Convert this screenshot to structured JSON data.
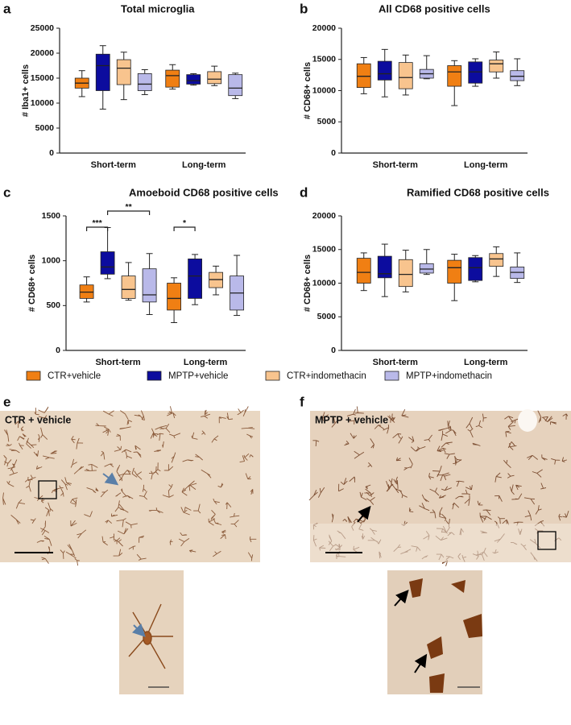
{
  "chart_data": [
    {
      "type": "box",
      "panel": "a",
      "title": "Total microglia",
      "ylabel": "# Iba1+ cells",
      "categories": [
        "Short-term",
        "Long-term"
      ],
      "ylim": [
        0,
        25000
      ],
      "yticks": [
        0,
        5000,
        10000,
        15000,
        20000,
        25000
      ],
      "series": [
        {
          "name": "CTR+vehicle",
          "color": "#f07f13",
          "values": [
            {
              "min": 11300,
              "q1": 13000,
              "median": 14000,
              "q3": 15000,
              "max": 16500
            },
            {
              "min": 12800,
              "q1": 13200,
              "median": 15500,
              "q3": 16600,
              "max": 17700
            }
          ]
        },
        {
          "name": "MPTP+vehicle",
          "color": "#0c0c9e",
          "values": [
            {
              "min": 8800,
              "q1": 12500,
              "median": 17500,
              "q3": 19800,
              "max": 21500
            },
            {
              "min": 13600,
              "q1": 13800,
              "median": 14500,
              "q3": 15700,
              "max": 15900
            }
          ]
        },
        {
          "name": "CTR+indomethacin",
          "color": "#f8c48e",
          "values": [
            {
              "min": 10700,
              "q1": 13700,
              "median": 17000,
              "q3": 18700,
              "max": 20200
            },
            {
              "min": 13500,
              "q1": 13900,
              "median": 14800,
              "q3": 16300,
              "max": 17400
            }
          ]
        },
        {
          "name": "MPTP+indomethacin",
          "color": "#b9b9e9",
          "values": [
            {
              "min": 11700,
              "q1": 12500,
              "median": 13800,
              "q3": 15900,
              "max": 16700
            },
            {
              "min": 10900,
              "q1": 11500,
              "median": 13000,
              "q3": 15700,
              "max": 16000
            }
          ]
        }
      ]
    },
    {
      "type": "box",
      "panel": "b",
      "title": "All CD68 positive cells",
      "ylabel": "# CD68+ cells",
      "categories": [
        "Short-term",
        "Long-term"
      ],
      "ylim": [
        0,
        20000
      ],
      "yticks": [
        0,
        5000,
        10000,
        15000,
        20000
      ],
      "series": [
        {
          "name": "CTR+vehicle",
          "color": "#f07f13",
          "values": [
            {
              "min": 9500,
              "q1": 10500,
              "median": 12300,
              "q3": 14300,
              "max": 15300
            },
            {
              "min": 7600,
              "q1": 10700,
              "median": 13000,
              "q3": 14000,
              "max": 14800
            }
          ]
        },
        {
          "name": "MPTP+vehicle",
          "color": "#0c0c9e",
          "values": [
            {
              "min": 9000,
              "q1": 11700,
              "median": 12700,
              "q3": 14700,
              "max": 16600
            },
            {
              "min": 10700,
              "q1": 11200,
              "median": 13000,
              "q3": 14600,
              "max": 15100
            }
          ]
        },
        {
          "name": "CTR+indomethacin",
          "color": "#f8c48e",
          "values": [
            {
              "min": 9300,
              "q1": 10300,
              "median": 12100,
              "q3": 14500,
              "max": 15700
            },
            {
              "min": 12000,
              "q1": 13000,
              "median": 14300,
              "q3": 14900,
              "max": 16200
            }
          ]
        },
        {
          "name": "MPTP+indomethacin",
          "color": "#b9b9e9",
          "values": [
            {
              "min": 11900,
              "q1": 12000,
              "median": 12700,
              "q3": 13400,
              "max": 15600
            },
            {
              "min": 10800,
              "q1": 11600,
              "median": 12300,
              "q3": 13200,
              "max": 15100
            }
          ]
        }
      ]
    },
    {
      "type": "box",
      "panel": "c",
      "title": "Amoeboid CD68 positive cells",
      "ylabel": "# CD68+ cells",
      "categories": [
        "Short-term",
        "Long-term"
      ],
      "ylim": [
        0,
        1500
      ],
      "yticks": [
        0,
        500,
        1000,
        1500
      ],
      "annotations": [
        "***",
        "**",
        "*"
      ],
      "series": [
        {
          "name": "CTR+vehicle",
          "color": "#f07f13",
          "values": [
            {
              "min": 540,
              "q1": 580,
              "median": 650,
              "q3": 730,
              "max": 820
            },
            {
              "min": 310,
              "q1": 450,
              "median": 580,
              "q3": 750,
              "max": 810
            }
          ]
        },
        {
          "name": "MPTP+vehicle",
          "color": "#0c0c9e",
          "values": [
            {
              "min": 800,
              "q1": 850,
              "median": 930,
              "q3": 1100,
              "max": 1370
            },
            {
              "min": 510,
              "q1": 580,
              "median": 830,
              "q3": 1020,
              "max": 1070
            }
          ]
        },
        {
          "name": "CTR+indomethacin",
          "color": "#f8c48e",
          "values": [
            {
              "min": 560,
              "q1": 580,
              "median": 680,
              "q3": 830,
              "max": 980
            },
            {
              "min": 620,
              "q1": 700,
              "median": 790,
              "q3": 870,
              "max": 940
            }
          ]
        },
        {
          "name": "MPTP+indomethacin",
          "color": "#b9b9e9",
          "values": [
            {
              "min": 400,
              "q1": 540,
              "median": 620,
              "q3": 910,
              "max": 1080
            },
            {
              "min": 390,
              "q1": 450,
              "median": 640,
              "q3": 830,
              "max": 1060
            }
          ]
        }
      ]
    },
    {
      "type": "box",
      "panel": "d",
      "title": "Ramified CD68 positive cells",
      "ylabel": "# CD68+ cells",
      "categories": [
        "Short-term",
        "Long-term"
      ],
      "ylim": [
        0,
        20000
      ],
      "yticks": [
        0,
        5000,
        10000,
        15000,
        20000
      ],
      "series": [
        {
          "name": "CTR+vehicle",
          "color": "#f07f13",
          "values": [
            {
              "min": 8900,
              "q1": 10000,
              "median": 11600,
              "q3": 13700,
              "max": 14500
            },
            {
              "min": 7400,
              "q1": 10000,
              "median": 12300,
              "q3": 13400,
              "max": 14300
            }
          ]
        },
        {
          "name": "MPTP+vehicle",
          "color": "#0c0c9e",
          "values": [
            {
              "min": 8000,
              "q1": 10800,
              "median": 11400,
              "q3": 14000,
              "max": 15800
            },
            {
              "min": 10200,
              "q1": 10400,
              "median": 12300,
              "q3": 13800,
              "max": 14100
            }
          ]
        },
        {
          "name": "CTR+indomethacin",
          "color": "#f8c48e",
          "values": [
            {
              "min": 8700,
              "q1": 9500,
              "median": 11300,
              "q3": 13500,
              "max": 14900
            },
            {
              "min": 11000,
              "q1": 12500,
              "median": 13600,
              "q3": 14400,
              "max": 15400
            }
          ]
        },
        {
          "name": "MPTP+indomethacin",
          "color": "#b9b9e9",
          "values": [
            {
              "min": 11300,
              "q1": 11500,
              "median": 12100,
              "q3": 12900,
              "max": 15000
            },
            {
              "min": 10100,
              "q1": 10700,
              "median": 11600,
              "q3": 12400,
              "max": 14500
            }
          ]
        }
      ]
    }
  ],
  "micrographs": [
    {
      "panel": "e",
      "title": "CTR + vehicle"
    },
    {
      "panel": "f",
      "title": "MPTP + vehicle"
    }
  ]
}
